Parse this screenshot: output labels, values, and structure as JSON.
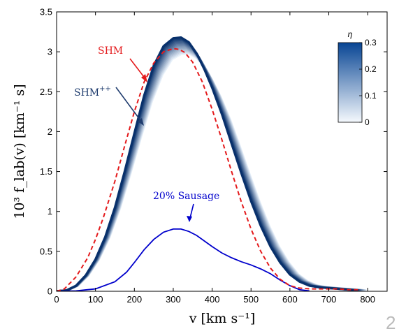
{
  "chart_data": {
    "type": "line",
    "xlabel": "v [km s⁻¹]",
    "ylabel": "10³ f_lab(v) [km⁻¹ s]",
    "xlim": [
      0,
      850
    ],
    "ylim": [
      0,
      3.5
    ],
    "xticks": [
      "0",
      "100",
      "200",
      "300",
      "400",
      "500",
      "600",
      "700",
      "800"
    ],
    "yticks": [
      "0",
      "0.5",
      "1",
      "1.5",
      "2",
      "2.5",
      "3",
      "3.5"
    ],
    "grid": false,
    "colorbar": {
      "label": "η",
      "range": [
        0,
        0.3
      ],
      "ticks": [
        "0",
        "0.1",
        "0.2",
        "0.3"
      ],
      "colors": [
        "#f5f9fd",
        "#084594"
      ]
    },
    "series": [
      {
        "name": "SHM",
        "style": "dashed",
        "color": "#e41a1c",
        "x": [
          0,
          20,
          50,
          80,
          100,
          120,
          150,
          175,
          200,
          225,
          250,
          275,
          300,
          315,
          330,
          350,
          375,
          400,
          425,
          450,
          475,
          500,
          525,
          550,
          575,
          600,
          625,
          650,
          675,
          700,
          725,
          750,
          775
        ],
        "y": [
          0,
          0.03,
          0.18,
          0.42,
          0.65,
          0.92,
          1.38,
          1.82,
          2.25,
          2.62,
          2.86,
          3.0,
          3.04,
          3.03,
          2.99,
          2.87,
          2.62,
          2.28,
          1.9,
          1.5,
          1.12,
          0.78,
          0.5,
          0.29,
          0.15,
          0.07,
          0.04,
          0.03,
          0.03,
          0.03,
          0.03,
          0.02,
          0.02
        ]
      },
      {
        "name": "SHM⁺⁺",
        "label": "SHM++",
        "style": "band",
        "color": "#08306b",
        "x": [
          0,
          25,
          50,
          75,
          100,
          125,
          150,
          175,
          200,
          225,
          250,
          275,
          300,
          320,
          340,
          360,
          380,
          400,
          425,
          450,
          475,
          500,
          525,
          550,
          575,
          600,
          625,
          650,
          675,
          700,
          725,
          750,
          775
        ],
        "y": [
          0,
          0.01,
          0.07,
          0.2,
          0.4,
          0.68,
          1.05,
          1.5,
          1.98,
          2.45,
          2.83,
          3.07,
          3.17,
          3.18,
          3.12,
          2.98,
          2.78,
          2.55,
          2.22,
          1.85,
          1.48,
          1.13,
          0.82,
          0.56,
          0.36,
          0.21,
          0.12,
          0.07,
          0.05,
          0.04,
          0.03,
          0.02,
          0.01
        ]
      },
      {
        "name": "20% Sausage",
        "style": "solid",
        "color": "#0000cc",
        "x": [
          0,
          50,
          100,
          150,
          180,
          200,
          225,
          250,
          275,
          300,
          320,
          340,
          360,
          380,
          400,
          425,
          450,
          475,
          500,
          525,
          550,
          575,
          600,
          625,
          650
        ],
        "y": [
          0,
          0.005,
          0.03,
          0.12,
          0.24,
          0.36,
          0.52,
          0.65,
          0.74,
          0.78,
          0.78,
          0.75,
          0.7,
          0.63,
          0.56,
          0.48,
          0.42,
          0.37,
          0.33,
          0.28,
          0.22,
          0.14,
          0.07,
          0.02,
          0.005
        ]
      }
    ],
    "annotations": [
      {
        "text": "SHM",
        "color": "#e41a1c"
      },
      {
        "text": "SHM",
        "sup": "++",
        "color": "#1f3c6e"
      },
      {
        "text": "20% Sausage",
        "color": "#0000cc"
      }
    ],
    "corner_mark": "2"
  }
}
